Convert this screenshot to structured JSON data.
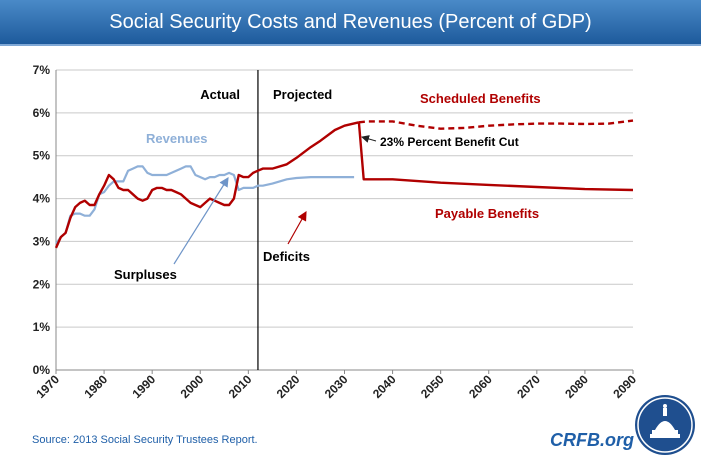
{
  "header": {
    "title": "Social Security Costs and Revenues (Percent of GDP)"
  },
  "footer": {
    "source": "Source: 2013 Social Security Trustees Report.",
    "brand": "CRFB.org"
  },
  "colors": {
    "cost": "#b00000",
    "revenue": "#8fb0d8",
    "title_bar": "#2a6db4",
    "text_blue": "#1f5fa8",
    "accent_label": "#1f5fa8"
  },
  "icons": {
    "logo": "capitol-dome-seal-icon"
  },
  "chart_data": {
    "type": "line",
    "title": "Social Security Costs and Revenues (Percent of GDP)",
    "xlim": [
      1970,
      2090
    ],
    "ylim": [
      0,
      7
    ],
    "x_ticks": [
      "1970",
      "1980",
      "1990",
      "2000",
      "2010",
      "2020",
      "2030",
      "2040",
      "2050",
      "2060",
      "2070",
      "2080",
      "2090"
    ],
    "y_ticks": [
      "0%",
      "1%",
      "2%",
      "3%",
      "4%",
      "5%",
      "6%",
      "7%"
    ],
    "grid": true,
    "divider_year": 2012,
    "series": [
      {
        "name": "Revenues",
        "color": "#8fb0d8",
        "style": "solid",
        "x": [
          1970,
          1971,
          1972,
          1973,
          1974,
          1975,
          1976,
          1977,
          1978,
          1979,
          1980,
          1981,
          1982,
          1983,
          1984,
          1985,
          1986,
          1987,
          1988,
          1989,
          1990,
          1991,
          1992,
          1993,
          1994,
          1995,
          1996,
          1997,
          1998,
          1999,
          2000,
          2001,
          2002,
          2003,
          2004,
          2005,
          2006,
          2007,
          2008,
          2009,
          2010,
          2011,
          2012,
          2013,
          2015,
          2018,
          2020,
          2023,
          2025,
          2030,
          2032
        ],
        "values": [
          2.95,
          3.1,
          3.2,
          3.6,
          3.65,
          3.65,
          3.6,
          3.6,
          3.75,
          4.1,
          4.15,
          4.3,
          4.4,
          4.4,
          4.4,
          4.65,
          4.7,
          4.75,
          4.75,
          4.6,
          4.55,
          4.55,
          4.55,
          4.55,
          4.6,
          4.65,
          4.7,
          4.75,
          4.75,
          4.55,
          4.5,
          4.45,
          4.5,
          4.5,
          4.55,
          4.55,
          4.6,
          4.55,
          4.2,
          4.25,
          4.25,
          4.25,
          4.3,
          4.3,
          4.35,
          4.45,
          4.48,
          4.5,
          4.5,
          4.5,
          4.5
        ]
      },
      {
        "name": "Scheduled Benefits",
        "color": "#b00000",
        "style": "solid",
        "x": [
          1970,
          1971,
          1972,
          1973,
          1974,
          1975,
          1976,
          1977,
          1978,
          1979,
          1980,
          1981,
          1982,
          1983,
          1984,
          1985,
          1986,
          1987,
          1988,
          1989,
          1990,
          1991,
          1992,
          1993,
          1994,
          1995,
          1996,
          1997,
          1998,
          1999,
          2000,
          2001,
          2002,
          2003,
          2004,
          2005,
          2006,
          2007,
          2008,
          2009,
          2010,
          2011,
          2012,
          2013,
          2015,
          2018,
          2020,
          2023,
          2025,
          2028,
          2030,
          2033
        ],
        "values": [
          2.85,
          3.1,
          3.2,
          3.55,
          3.8,
          3.9,
          3.95,
          3.85,
          3.85,
          4.1,
          4.3,
          4.55,
          4.45,
          4.25,
          4.2,
          4.2,
          4.1,
          4.0,
          3.95,
          4.0,
          4.2,
          4.25,
          4.25,
          4.2,
          4.2,
          4.15,
          4.1,
          4.0,
          3.9,
          3.85,
          3.8,
          3.9,
          4.0,
          3.95,
          3.9,
          3.85,
          3.85,
          4.0,
          4.55,
          4.5,
          4.5,
          4.6,
          4.65,
          4.7,
          4.7,
          4.8,
          4.95,
          5.2,
          5.35,
          5.6,
          5.7,
          5.78
        ]
      },
      {
        "name": "Scheduled Benefits (projected)",
        "color": "#b00000",
        "style": "dashed",
        "x": [
          2033,
          2035,
          2040,
          2045,
          2050,
          2055,
          2060,
          2065,
          2070,
          2075,
          2080,
          2085,
          2090
        ],
        "values": [
          5.78,
          5.8,
          5.8,
          5.7,
          5.63,
          5.65,
          5.7,
          5.73,
          5.75,
          5.75,
          5.74,
          5.75,
          5.82
        ]
      },
      {
        "name": "Payable Benefits",
        "color": "#b00000",
        "style": "solid",
        "x": [
          2033,
          2034,
          2040,
          2050,
          2060,
          2070,
          2080,
          2090
        ],
        "values": [
          5.78,
          4.45,
          4.45,
          4.37,
          4.32,
          4.27,
          4.22,
          4.2
        ]
      }
    ],
    "annotations": [
      {
        "id": "actual",
        "text": "Actual"
      },
      {
        "id": "projected",
        "text": "Projected"
      },
      {
        "id": "revenues",
        "text": "Revenues"
      },
      {
        "id": "scheduled",
        "text": "Scheduled Benefits"
      },
      {
        "id": "cut",
        "text": "23% Percent Benefit Cut"
      },
      {
        "id": "payable",
        "text": "Payable Benefits"
      },
      {
        "id": "deficits",
        "text": "Deficits"
      },
      {
        "id": "surpluses",
        "text": "Surpluses"
      }
    ]
  }
}
